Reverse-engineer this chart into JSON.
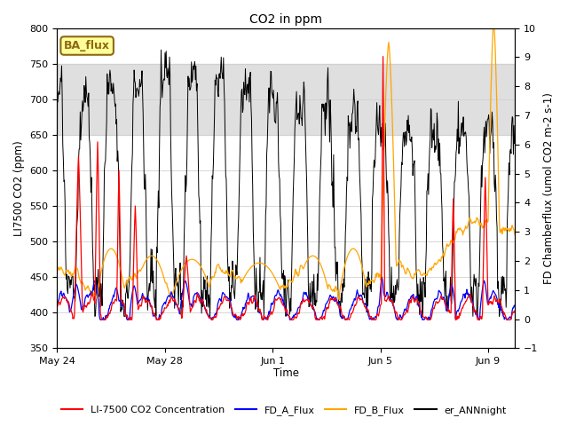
{
  "title": "CO2 in ppm",
  "ylabel_left": "LI7500 CO2 (ppm)",
  "ylabel_right": "FD Chamberflux (umol CO2 m-2 s-1)",
  "xlabel": "Time",
  "ylim_left": [
    350,
    800
  ],
  "ylim_right": [
    -1.0,
    10.0
  ],
  "yticks_left": [
    350,
    400,
    450,
    500,
    550,
    600,
    650,
    700,
    750,
    800
  ],
  "yticks_right": [
    -1.0,
    0.0,
    1.0,
    2.0,
    3.0,
    4.0,
    5.0,
    6.0,
    7.0,
    8.0,
    9.0,
    10.0
  ],
  "xtick_labels": [
    "May 24",
    "May 28",
    "Jun 1",
    "Jun 5",
    "Jun 9"
  ],
  "xtick_positions": [
    0,
    4,
    8,
    12,
    16
  ],
  "annotation_text": "BA_flux",
  "annotation_color": "#8B6914",
  "annotation_bg": "#FFFF99",
  "line_colors": {
    "red": "#FF0000",
    "blue": "#0000FF",
    "orange": "#FFA500",
    "black": "#000000"
  },
  "legend_labels": [
    "LI-7500 CO2 Concentration",
    "FD_A_Flux",
    "FD_B_Flux",
    "er_ANNnight"
  ],
  "shaded_band_yleft": [
    650,
    750
  ],
  "background_color": "#ffffff",
  "grid_color": "#cccccc"
}
